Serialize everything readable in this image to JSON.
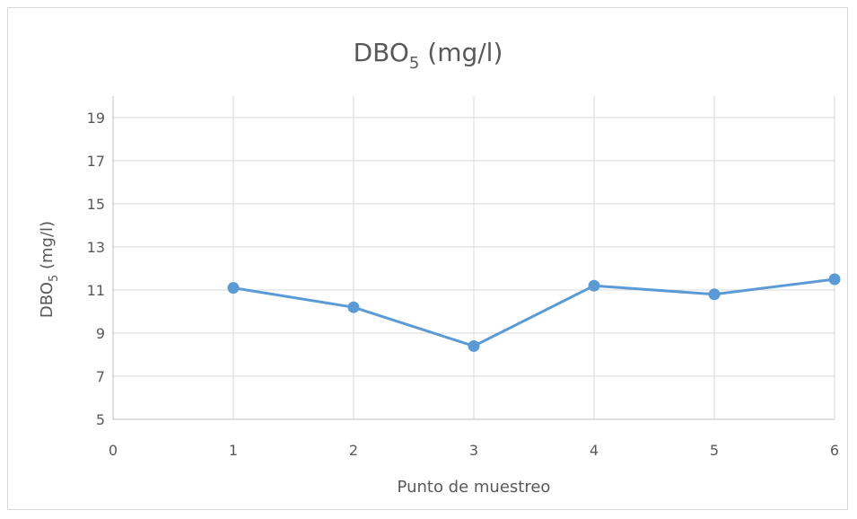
{
  "chart_data": {
    "type": "scatter",
    "title_main": "DBO",
    "title_sub": "5",
    "title_unit": " (mg/l)",
    "xlabel": "Punto de muestreo",
    "ylabel_main": "DBO",
    "ylabel_sub": "5",
    "ylabel_unit": " (mg/l)",
    "xlim": [
      0,
      6
    ],
    "ylim": [
      5,
      20
    ],
    "x_ticks": [
      0,
      1,
      2,
      3,
      4,
      5,
      6
    ],
    "y_ticks": [
      5,
      7,
      9,
      11,
      13,
      15,
      17,
      19
    ],
    "grid": true,
    "legend": "none",
    "series": [
      {
        "x": [
          1,
          2,
          3,
          4,
          5,
          6
        ],
        "y": [
          11.1,
          10.2,
          8.4,
          11.2,
          10.8,
          11.5
        ],
        "color": "#5b9bd5",
        "style": "line-with-markers"
      }
    ]
  }
}
